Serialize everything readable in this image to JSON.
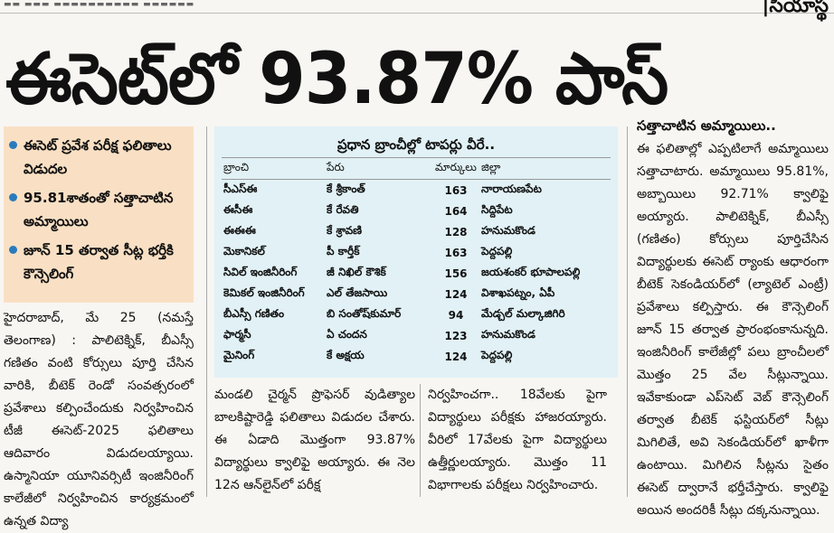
{
  "masthead": {
    "dateline": "▬▬ ▬▬▬ ▬▬▬▬▬▬▬▬▬▬ ▬▬▬▬▬▬",
    "edition": "|సియాస్థ"
  },
  "headline": "ఈసెట్‌లో 93.87% పాస్",
  "highlights": [
    "ఈసెట్ ప్రవేశ పరీక్ష ఫలితాలు విడుదల",
    "95.81శాతంతో సత్తాచాటిన అమ్మాయిలు",
    "జూన్ 15 తర్వాత సీట్ల భర్తీకి కౌన్సెలింగ్"
  ],
  "toppers_box": {
    "title": "ప్రధాన బ్రాంచీల్లో టాపర్లు వీరే..",
    "headers": [
      "బ్రాంచి",
      "పేరు",
      "మార్కులు",
      "జిల్లా"
    ],
    "rows": [
      [
        "సీఎస్ఈ",
        "కే శ్రీకాంత్",
        "163",
        "నారాయణపేట"
      ],
      [
        "ఈసీఈ",
        "కే రేవతి",
        "164",
        "సిద్దిపేట"
      ],
      [
        "ఈఈఈ",
        "కే శ్రావణి",
        "128",
        "హనుమకొండ"
      ],
      [
        "మెకానికల్",
        "పీ కార్తీక్",
        "163",
        "పెద్దపల్లి"
      ],
      [
        "సివిల్ ఇంజినీరింగ్",
        "జీ నిఖిల్ కౌశిక్",
        "156",
        "జయశంకర్ భూపాలపల్లి"
      ],
      [
        "కెమికల్ ఇంజినీరింగ్",
        "ఎల్ తేజసాయి",
        "124",
        "విశాఖపట్నం, ఏపీ"
      ],
      [
        "బీఎస్సీ గణితం",
        "బి సంతోష్‌కుమార్",
        "94",
        "మేడ్చల్ మల్కాజిగిరి"
      ],
      [
        "ఫార్మసీ",
        "ఏ చందన",
        "123",
        "హనుమకొండ"
      ],
      [
        "మైనింగ్",
        "కే అక్షయ",
        "124",
        "పెద్దపల్లి"
      ]
    ]
  },
  "article": {
    "col1": "హైదరాబాద్, మే 25 (నమస్తే తెలంగాణ) : పాలిటెక్నిక్, బీఎస్సీ గణితం వంటి కోర్సులు పూర్తి చేసిన వారికి, బీటెక్ రెండో సంవత్సరంలో ప్రవేశాలు కల్పించేందుకు నిర్వహించిన టీజీ ఈసెట్-2025 ఫలితాలు ఆదివారం విడుదలయ్యాయి. ఉస్మానియా యూనివర్సిటీ ఇంజినీరింగ్ కాలేజీలో నిర్వహించిన కార్యక్రమంలో ఉన్నత విద్యా",
    "col2": "మండలి చైర్మన్ ప్రొఫెసర్ వుడిత్యాల బాలకిష్టారెడ్డి ఫలితాలు విడుదల చేశారు. ఈ ఏడాది మొత్తంగా 93.87% విద్యార్థులు క్వాలిఫై అయ్యారు. ఈ నెల 12న ఆన్‌లైన్‌లో పరీక్ష",
    "col3": "నిర్వహించగా.. 18వేలకు పైగా విద్యార్థులు పరీక్షకు హాజరయ్యారు. వీరిలో 17వేలకు పైగా విద్యార్థులు ఉత్తీర్ణులయ్యారు. మొత్తం 11 విభాగాలకు పరీక్షలు నిర్వహించారు.",
    "col4_subhead": "సత్తాచాటిన అమ్మాయిలు..",
    "col4": "ఈ ఫలితాల్లో ఎప్పటిలాగే అమ్మాయిలు సత్తాచాటారు. అమ్మాయిలు 95.81%, అబ్బాయిలు 92.71% క్వాలిఫై అయ్యారు. పాలిటెక్నిక్, బీఎస్సీ (గణితం) కోర్సులు పూర్తిచేసిన విద్యార్థులకు ఈసెట్ ర్యాంకు ఆధారంగా బీటెక్ సెకండియర్‌లో (ల్యాటెల్ ఎంట్రీ) ప్రవేశాలు కల్పిస్తారు. ఈ కౌన్సెలింగ్ జూన్ 15 తర్వాత ప్రారంభంకానున్నది. ఇంజినీరింగ్ కాలేజీల్లో పలు బ్రాంచీలలో మొత్తం 25 వేల సీట్లున్నాయి. ఇవేకాకుండా ఎప్‌సెట్ వెబ్ కౌన్సెలింగ్ తర్వాత బీటెక్ ఫస్టియర్‌లో సీట్లు మిగిలితే, అవి సెకండియర్‌లో ఖాళీగా ఉంటాయి. మిగిలిన సీట్లను సైతం ఈసెట్ ద్వారానే భర్తీచేస్తారు. క్వాలిఫై అయిన అందరికీ సీట్లు దక్కనున్నాయి."
  }
}
